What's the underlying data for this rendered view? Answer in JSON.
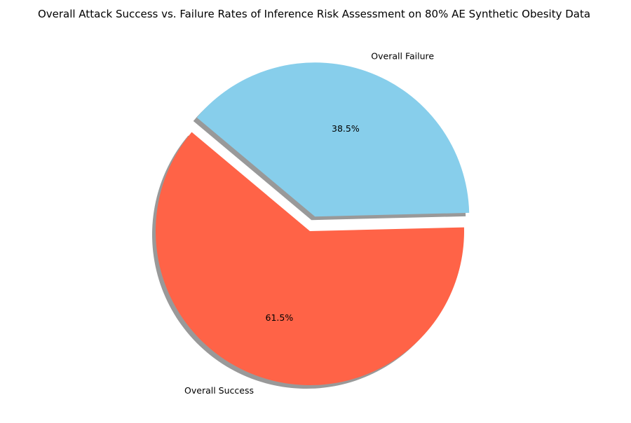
{
  "chart_data": {
    "type": "pie",
    "title": "Overall Attack Success vs. Failure Rates of Inference Risk Assessment on 80% AE Synthetic Obesity Data",
    "categories": [
      "Overall Success",
      "Overall Failure"
    ],
    "values": [
      61.5,
      38.5
    ],
    "value_labels": [
      "61.5%",
      "38.5%"
    ],
    "colors": [
      "#ff6347",
      "#87ceeb"
    ],
    "explode": [
      0,
      0.1
    ],
    "shadow": true,
    "start_angle_deg": 140
  }
}
